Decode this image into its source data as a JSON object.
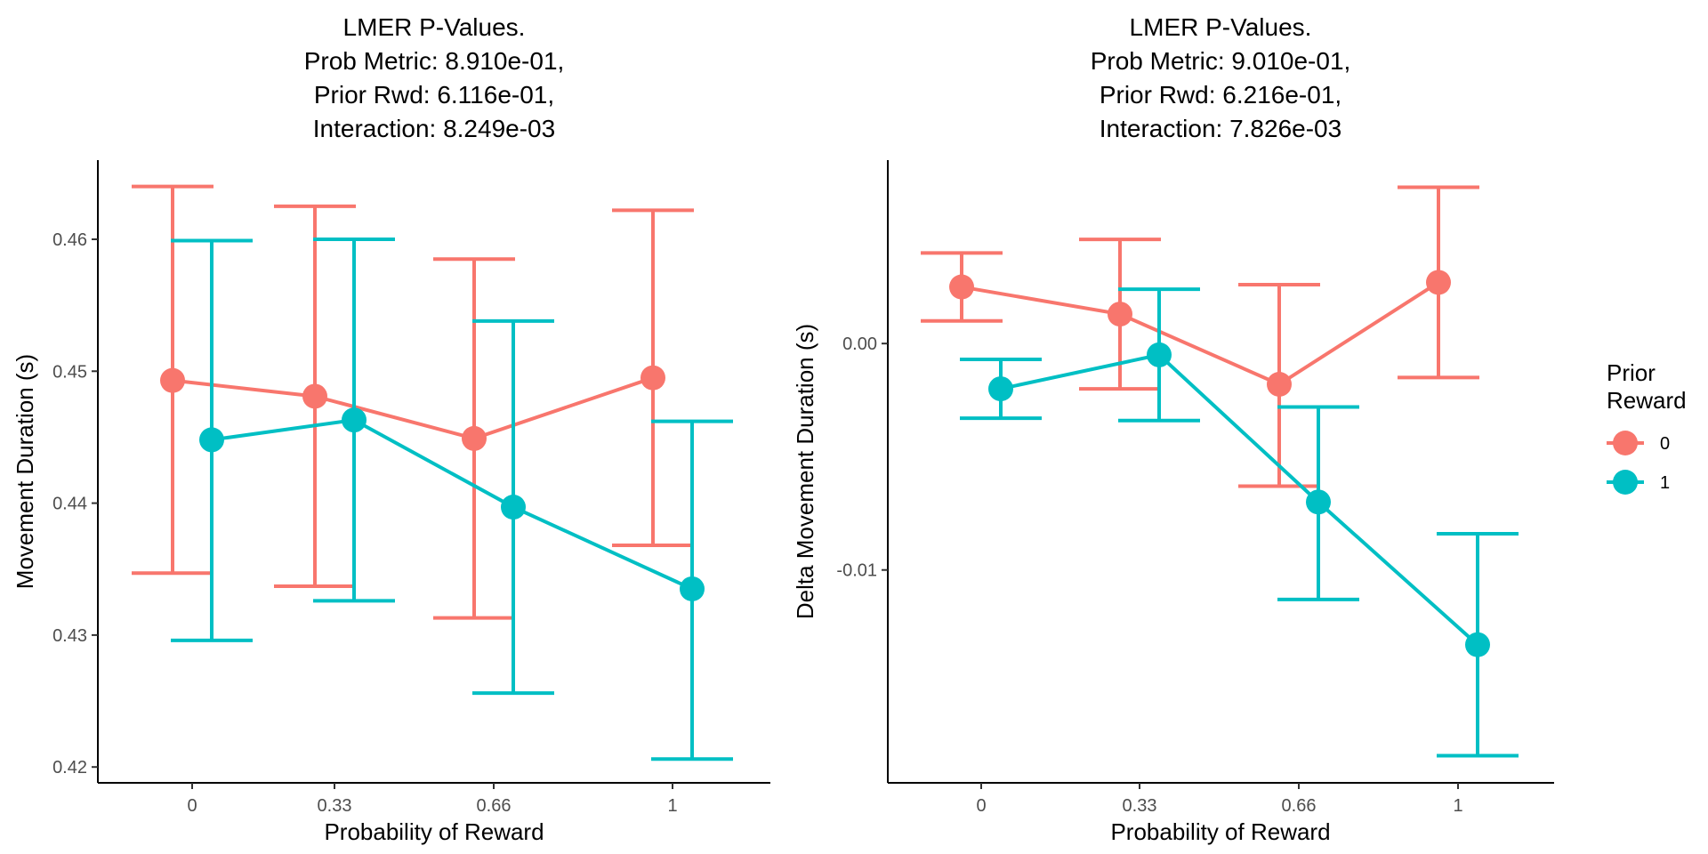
{
  "chart_data": [
    {
      "type": "line",
      "title_lines": [
        "LMER P-Values.",
        "Prob Metric: 8.910e-01,",
        "Prior Rwd: 6.116e-01,",
        "Interaction: 8.249e-03"
      ],
      "xlabel": "Probability of Reward",
      "ylabel": "Movement Duration (s)",
      "categories": [
        "0",
        "0.33",
        "0.66",
        "1"
      ],
      "ylim": [
        0.4188,
        0.466
      ],
      "yticks": [
        0.42,
        0.43,
        0.44,
        0.45,
        0.46
      ],
      "ytick_labels": [
        "0.42",
        "0.43",
        "0.44",
        "0.45",
        "0.46"
      ],
      "series": [
        {
          "name": "0",
          "color": "#F8766D",
          "values": [
            0.4493,
            0.4481,
            0.4449,
            0.4495
          ],
          "lower": [
            0.4347,
            0.4337,
            0.4313,
            0.4368
          ],
          "upper": [
            0.464,
            0.4625,
            0.4585,
            0.4622
          ]
        },
        {
          "name": "1",
          "color": "#00BFC4",
          "values": [
            0.4448,
            0.4463,
            0.4397,
            0.4335
          ],
          "lower": [
            0.4296,
            0.4326,
            0.4256,
            0.4206
          ],
          "upper": [
            0.4599,
            0.46,
            0.4538,
            0.4462
          ]
        }
      ],
      "grid": false
    },
    {
      "type": "line",
      "title_lines": [
        "LMER P-Values.",
        "Prob Metric: 9.010e-01,",
        "Prior Rwd: 6.216e-01,",
        "Interaction: 7.826e-03"
      ],
      "xlabel": "Probability of Reward",
      "ylabel": "Delta Movement Duration (s)",
      "categories": [
        "0",
        "0.33",
        "0.66",
        "1"
      ],
      "ylim": [
        -0.0194,
        0.0081
      ],
      "yticks": [
        -0.01,
        0.0
      ],
      "ytick_labels": [
        "-0.01",
        "0.00"
      ],
      "series": [
        {
          "name": "0",
          "color": "#F8766D",
          "values": [
            0.0025,
            0.0013,
            -0.0018,
            0.0027
          ],
          "lower": [
            0.001,
            -0.002,
            -0.0063,
            -0.0015
          ],
          "upper": [
            0.004,
            0.0046,
            0.0026,
            0.0069
          ]
        },
        {
          "name": "1",
          "color": "#00BFC4",
          "values": [
            -0.002,
            -0.0005,
            -0.007,
            -0.0133
          ],
          "lower": [
            -0.0033,
            -0.0034,
            -0.0113,
            -0.0182
          ],
          "upper": [
            -0.0007,
            0.0024,
            -0.0028,
            -0.0084
          ]
        }
      ],
      "grid": false
    }
  ],
  "legend": {
    "title_lines": [
      "Prior",
      "Reward"
    ],
    "placement": "right",
    "entries": [
      {
        "label": "0",
        "color": "#F8766D"
      },
      {
        "label": "1",
        "color": "#00BFC4"
      }
    ]
  }
}
